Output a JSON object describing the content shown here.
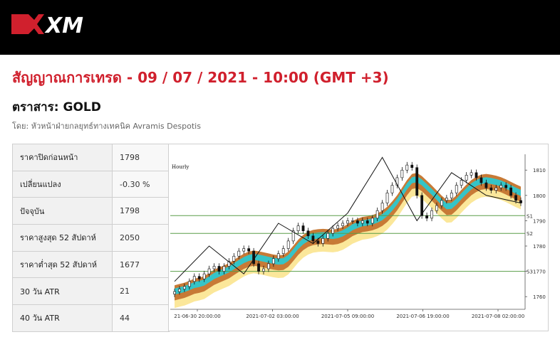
{
  "brand": {
    "logo_text": "XM",
    "accent_color": "#d0202d"
  },
  "page": {
    "title": "สัญญาณการเทรด - 09 / 07 / 2021 - 10:00 (GMT +3)",
    "instrument": "ตราสาร: GOLD",
    "author": "โดย: หัวหน้าฝ่ายกลยุทธ์ทางเทคนิค Avramis Despotis"
  },
  "stats": [
    {
      "label": "ราคาปิดก่อนหน้า",
      "value": "1798"
    },
    {
      "label": "เปลี่ยนแปลง",
      "value": "-0.30 %"
    },
    {
      "label": "ปัจจุบัน",
      "value": "1798"
    },
    {
      "label": "ราคาสูงสุด 52 สัปดาห์",
      "value": "2050"
    },
    {
      "label": "ราคาต่ำสุด 52 สัปดาห์",
      "value": "1677"
    },
    {
      "label": "30 วัน ATR",
      "value": "21"
    },
    {
      "label": "40 วัน ATR",
      "value": "44"
    }
  ],
  "chart_data": {
    "type": "candlestick",
    "timeframe_label": "Hourly",
    "y_ticks": [
      1760,
      1770,
      1780,
      1790,
      1800,
      1810
    ],
    "ylim": [
      1755,
      1814
    ],
    "x_tick_labels": [
      "21-06-30 20:00:00",
      "2021-07-02 03:00:00",
      "2021-07-05 09:00:00",
      "2021-07-06 19:00:00",
      "2021-07-08 02:00:00"
    ],
    "support_levels": [
      {
        "name": "S1",
        "value": 1792
      },
      {
        "name": "S2",
        "value": 1785
      },
      {
        "name": "S3",
        "value": 1770
      }
    ],
    "zigzag": [
      1766,
      1780,
      1769,
      1789,
      1781,
      1793,
      1815,
      1790,
      1809,
      1800,
      1797
    ],
    "close": [
      1762,
      1763,
      1764,
      1766,
      1768,
      1767,
      1769,
      1771,
      1772,
      1770,
      1772,
      1774,
      1776,
      1778,
      1779,
      1778,
      1773,
      1770,
      1771,
      1773,
      1775,
      1777,
      1779,
      1782,
      1786,
      1788,
      1786,
      1784,
      1782,
      1781,
      1783,
      1785,
      1787,
      1788,
      1789,
      1790,
      1790,
      1789,
      1790,
      1789,
      1791,
      1794,
      1797,
      1801,
      1804,
      1807,
      1810,
      1812,
      1811,
      1800,
      1792,
      1791,
      1794,
      1796,
      1798,
      1799,
      1801,
      1804,
      1806,
      1808,
      1809,
      1807,
      1805,
      1803,
      1802,
      1803,
      1804,
      1803,
      1800,
      1798,
      1797
    ],
    "line_color": "#111111",
    "band_colors": {
      "outer": "#fbe79a",
      "middle": "#c77a36",
      "inner": "#35c4c7"
    },
    "level_color": "#5a9e48"
  }
}
